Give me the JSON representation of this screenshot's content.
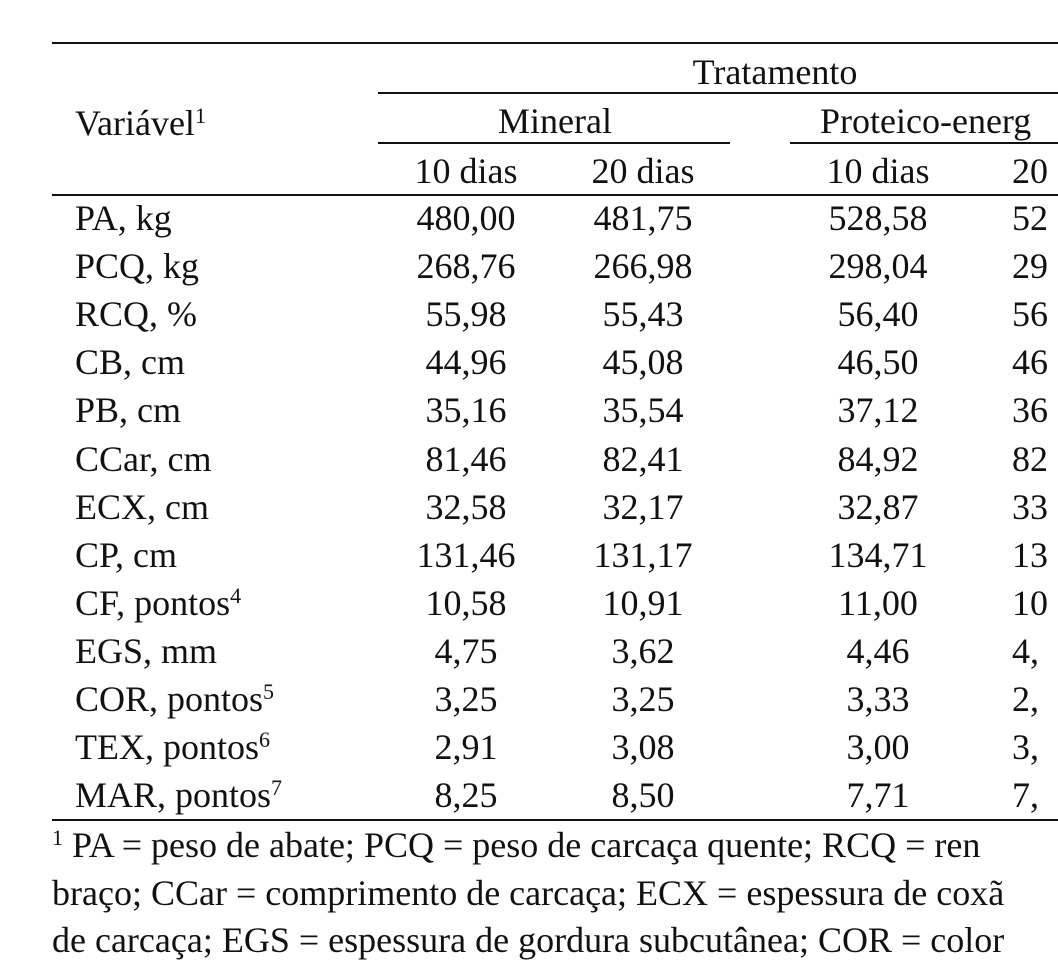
{
  "header": {
    "title": "Tratamento",
    "variable_label": "Variável",
    "variable_sup": "1",
    "groups": [
      {
        "name": "Mineral",
        "subcolumns": [
          "10 dias",
          "20 dias"
        ]
      },
      {
        "name": "Proteico-energ",
        "subcolumns": [
          "10 dias",
          "20"
        ]
      }
    ]
  },
  "table": {
    "rows": [
      {
        "label": "PA, kg",
        "values": [
          "480,00",
          "481,75",
          "528,58",
          "52"
        ]
      },
      {
        "label": "PCQ, kg",
        "values": [
          "268,76",
          "266,98",
          "298,04",
          "29"
        ]
      },
      {
        "label": "RCQ, %",
        "values": [
          "55,98",
          "55,43",
          "56,40",
          "56"
        ]
      },
      {
        "label": "CB, cm",
        "values": [
          "44,96",
          "45,08",
          "46,50",
          "46"
        ]
      },
      {
        "label": "PB, cm",
        "values": [
          "35,16",
          "35,54",
          "37,12",
          "36"
        ]
      },
      {
        "label": "CCar, cm",
        "values": [
          "81,46",
          "82,41",
          "84,92",
          "82"
        ]
      },
      {
        "label": "ECX, cm",
        "values": [
          "32,58",
          "32,17",
          "32,87",
          "33"
        ]
      },
      {
        "label": "CP, cm",
        "values": [
          "131,46",
          "131,17",
          "134,71",
          "13"
        ]
      },
      {
        "label": "CF, pontos",
        "sup": "4",
        "values": [
          "10,58",
          "10,91",
          "11,00",
          "10"
        ]
      },
      {
        "label": "EGS, mm",
        "values": [
          "4,75",
          "3,62",
          "4,46",
          "4,"
        ]
      },
      {
        "label": "COR, pontos",
        "sup": "5",
        "values": [
          "3,25",
          "3,25",
          "3,33",
          "2,"
        ]
      },
      {
        "label": "TEX, pontos",
        "sup": "6",
        "values": [
          "2,91",
          "3,08",
          "3,00",
          "3,"
        ]
      },
      {
        "label": "MAR, pontos",
        "sup": "7",
        "values": [
          "8,25",
          "8,50",
          "7,71",
          "7,"
        ]
      }
    ]
  },
  "footnotes": [
    {
      "sup": "1",
      "text": "PA = peso de abate; PCQ = peso de carcaça quente; RCQ = ren"
    },
    {
      "text": "braço; CCar = comprimento de carcaça; ECX = espessura de coxã"
    },
    {
      "text": "de carcaça; EGS = espessura de gordura subcutânea; COR = color"
    }
  ]
}
